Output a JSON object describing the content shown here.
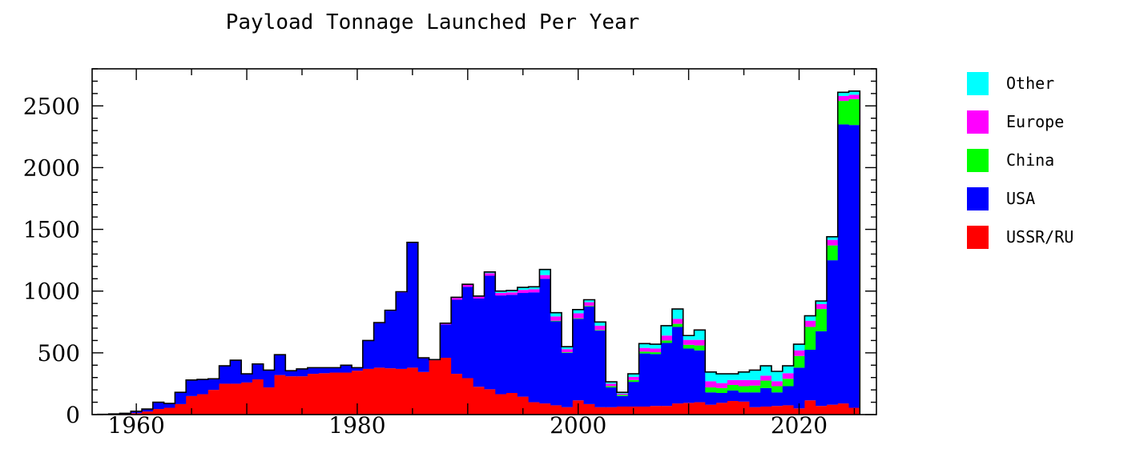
{
  "chart_data": {
    "type": "bar",
    "stacked": true,
    "title": "Payload Tonnage Launched Per Year",
    "xlabel": "",
    "ylabel": "",
    "xlim": [
      1956,
      2027
    ],
    "ylim": [
      0,
      2800
    ],
    "x_ticks": [
      1960,
      1980,
      2000,
      2020
    ],
    "y_ticks": [
      0,
      500,
      1000,
      1500,
      2000,
      2500
    ],
    "legend_position": "right",
    "x": [
      1957,
      1958,
      1959,
      1960,
      1961,
      1962,
      1963,
      1964,
      1965,
      1966,
      1967,
      1968,
      1969,
      1970,
      1971,
      1972,
      1973,
      1974,
      1975,
      1976,
      1977,
      1978,
      1979,
      1980,
      1981,
      1982,
      1983,
      1984,
      1985,
      1986,
      1987,
      1988,
      1989,
      1990,
      1991,
      1992,
      1993,
      1994,
      1995,
      1996,
      1997,
      1998,
      1999,
      2000,
      2001,
      2002,
      2003,
      2004,
      2005,
      2006,
      2007,
      2008,
      2009,
      2010,
      2011,
      2012,
      2013,
      2014,
      2015,
      2016,
      2017,
      2018,
      2019,
      2020,
      2021,
      2022,
      2023,
      2024,
      2025
    ],
    "series": [
      {
        "name": "USSR/RU",
        "color": "#ff0000",
        "values": [
          2,
          3,
          5,
          12,
          25,
          45,
          55,
          85,
          150,
          165,
          200,
          250,
          250,
          260,
          285,
          220,
          320,
          310,
          310,
          330,
          335,
          340,
          340,
          355,
          370,
          380,
          375,
          370,
          380,
          345,
          440,
          460,
          330,
          295,
          225,
          205,
          165,
          175,
          145,
          100,
          90,
          75,
          60,
          115,
          85,
          60,
          60,
          65,
          65,
          65,
          70,
          70,
          90,
          95,
          100,
          80,
          95,
          110,
          105,
          60,
          65,
          70,
          75,
          50,
          115,
          70,
          80,
          90,
          55
        ]
      },
      {
        "name": "USA",
        "color": "#0000ff",
        "values": [
          0,
          2,
          5,
          15,
          20,
          55,
          35,
          95,
          130,
          120,
          90,
          145,
          190,
          70,
          125,
          140,
          165,
          45,
          60,
          50,
          45,
          40,
          60,
          25,
          230,
          360,
          465,
          620,
          1010,
          110,
          0,
          270,
          600,
          740,
          715,
          920,
          800,
          795,
          840,
          890,
          1010,
          680,
          440,
          660,
          790,
          620,
          160,
          85,
          200,
          430,
          420,
          510,
          620,
          440,
          420,
          100,
          80,
          85,
          75,
          120,
          150,
          110,
          155,
          330,
          410,
          605,
          1170,
          2260,
          2290
        ]
      },
      {
        "name": "China",
        "color": "#00ff00",
        "values": [
          0,
          0,
          0,
          0,
          0,
          0,
          0,
          0,
          0,
          0,
          0,
          0,
          0,
          0,
          0,
          0,
          0,
          0,
          0,
          0,
          0,
          0,
          0,
          0,
          0,
          0,
          0,
          0,
          0,
          0,
          0,
          0,
          0,
          0,
          0,
          0,
          0,
          0,
          0,
          0,
          0,
          5,
          5,
          5,
          5,
          5,
          10,
          10,
          15,
          15,
          15,
          20,
          25,
          30,
          40,
          40,
          40,
          45,
          50,
          55,
          60,
          50,
          60,
          95,
          185,
          180,
          120,
          190,
          210
        ]
      },
      {
        "name": "Europe",
        "color": "#ff00ff",
        "values": [
          0,
          0,
          0,
          0,
          0,
          0,
          0,
          0,
          0,
          0,
          0,
          0,
          0,
          0,
          0,
          0,
          0,
          0,
          0,
          0,
          0,
          0,
          0,
          0,
          0,
          5,
          5,
          5,
          5,
          5,
          5,
          10,
          15,
          15,
          15,
          20,
          20,
          20,
          25,
          25,
          30,
          35,
          25,
          40,
          30,
          35,
          20,
          10,
          25,
          30,
          30,
          40,
          40,
          40,
          45,
          50,
          40,
          40,
          50,
          45,
          40,
          40,
          45,
          45,
          50,
          40,
          45,
          40,
          35
        ]
      },
      {
        "name": "Other",
        "color": "#00ffff",
        "values": [
          0,
          0,
          0,
          0,
          0,
          0,
          0,
          0,
          0,
          0,
          0,
          0,
          0,
          0,
          0,
          0,
          0,
          0,
          0,
          0,
          0,
          0,
          0,
          0,
          0,
          0,
          0,
          0,
          0,
          0,
          0,
          0,
          5,
          5,
          5,
          10,
          15,
          15,
          20,
          20,
          45,
          30,
          20,
          30,
          20,
          30,
          15,
          10,
          25,
          35,
          35,
          80,
          80,
          35,
          80,
          75,
          75,
          50,
          65,
          80,
          80,
          80,
          60,
          50,
          40,
          25,
          25,
          30,
          30
        ]
      }
    ]
  }
}
